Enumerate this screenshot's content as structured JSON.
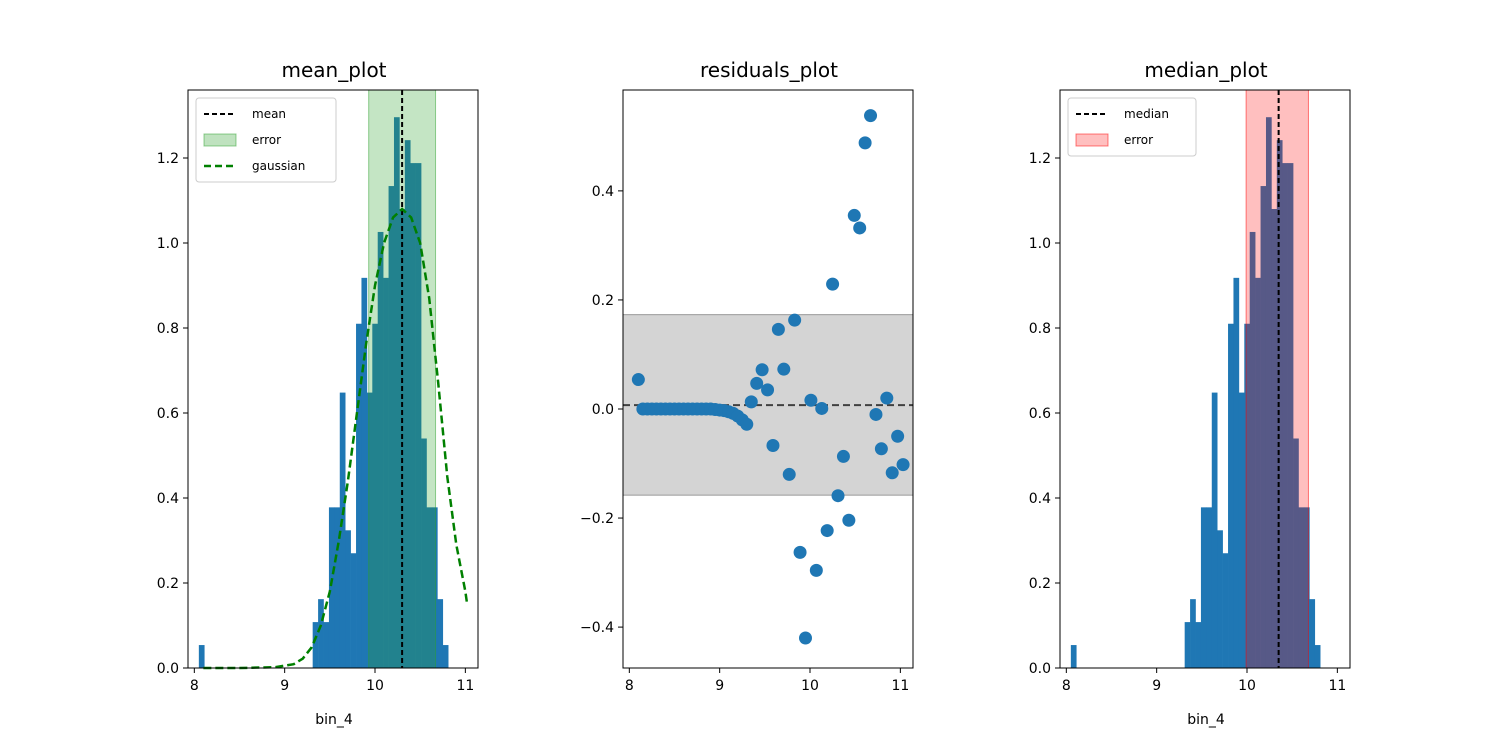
{
  "chart_data": [
    {
      "type": "bar",
      "title": "mean_plot",
      "xlabel": "bin_4",
      "ylabel": "",
      "xlim": [
        7.93,
        11.14
      ],
      "ylim": [
        0,
        1.36
      ],
      "xticks": [
        8,
        9,
        10,
        11
      ],
      "yticks": [
        0.0,
        0.2,
        0.4,
        0.6,
        0.8,
        1.0,
        1.2
      ],
      "xtick_labels": [
        "8",
        "9",
        "10",
        "11"
      ],
      "ytick_labels": [
        "0.0",
        "0.2",
        "0.4",
        "0.6",
        "0.8",
        "1.0",
        "1.2"
      ],
      "grid": false,
      "legend_position": "top-left",
      "bar_color": "#1f77b4",
      "histogram": {
        "bin_edges": [
          8.05,
          8.11,
          8.17,
          8.23,
          8.29,
          8.35,
          8.41,
          8.47,
          8.53,
          8.59,
          8.65,
          8.71,
          8.77,
          8.83,
          8.89,
          8.95,
          9.01,
          9.07,
          9.13,
          9.19,
          9.25,
          9.31,
          9.37,
          9.43,
          9.49,
          9.55,
          9.61,
          9.67,
          9.73,
          9.79,
          9.85,
          9.91,
          9.97,
          10.03,
          10.09,
          10.15,
          10.21,
          10.27,
          10.33,
          10.39,
          10.45,
          10.51,
          10.57,
          10.63,
          10.69,
          10.75,
          10.81,
          10.87,
          10.93,
          10.99,
          11.05
        ],
        "values": [
          0.054,
          0,
          0,
          0,
          0,
          0,
          0,
          0,
          0,
          0,
          0,
          0,
          0,
          0,
          0,
          0,
          0,
          0,
          0,
          0,
          0,
          0.108,
          0.162,
          0.108,
          0.378,
          0.378,
          0.648,
          0.324,
          0.27,
          0.81,
          0.918,
          0.648,
          0.81,
          1.026,
          0.918,
          1.134,
          1.296,
          1.08,
          1.242,
          1.188,
          1.188,
          0.54,
          0.378,
          0.378,
          0.162,
          0.054,
          0,
          0,
          0,
          0
        ]
      },
      "mean": 10.3,
      "error_band": [
        9.93,
        10.67
      ],
      "gaussian": {
        "x": [
          8.1,
          8.5,
          8.9,
          9.1,
          9.2,
          9.3,
          9.4,
          9.5,
          9.6,
          9.7,
          9.8,
          9.9,
          10.0,
          10.1,
          10.2,
          10.3,
          10.4,
          10.5,
          10.6,
          10.7,
          10.8,
          10.9,
          11.0,
          11.02
        ],
        "y": [
          0.0,
          0.0,
          0.002,
          0.009,
          0.022,
          0.049,
          0.1,
          0.18,
          0.3,
          0.44,
          0.6,
          0.76,
          0.9,
          1.0,
          1.06,
          1.08,
          1.06,
          1.0,
          0.87,
          0.67,
          0.45,
          0.29,
          0.18,
          0.15
        ]
      },
      "legend": [
        {
          "label": "mean",
          "type": "dashed-line",
          "color": "#000000"
        },
        {
          "label": "error",
          "type": "patch",
          "color": "#2ca02c"
        },
        {
          "label": "gaussian",
          "type": "dashed-line",
          "color": "#008000"
        }
      ]
    },
    {
      "type": "scatter",
      "title": "residuals_plot",
      "xlabel": "",
      "ylabel": "",
      "xlim": [
        7.93,
        11.14
      ],
      "ylim": [
        -0.475,
        0.585
      ],
      "xticks": [
        8,
        9,
        10,
        11
      ],
      "yticks": [
        -0.4,
        -0.2,
        0.0,
        0.2,
        0.4
      ],
      "xtick_labels": [
        "8",
        "9",
        "10",
        "11"
      ],
      "ytick_labels": [
        "−0.4",
        "−0.2",
        "0.0",
        "0.2",
        "0.4"
      ],
      "grid": false,
      "point_color": "#1f77b4",
      "reference_line": 0.007,
      "band": [
        -0.158,
        0.173
      ],
      "x": [
        8.1,
        8.15,
        8.2,
        8.25,
        8.3,
        8.35,
        8.4,
        8.45,
        8.5,
        8.55,
        8.6,
        8.65,
        8.7,
        8.75,
        8.8,
        8.85,
        8.9,
        8.95,
        9.0,
        9.05,
        9.1,
        9.15,
        9.2,
        9.25,
        9.3,
        9.35,
        9.41,
        9.47,
        9.53,
        9.59,
        9.65,
        9.71,
        9.77,
        9.83,
        9.89,
        9.95,
        10.01,
        10.07,
        10.13,
        10.19,
        10.25,
        10.31,
        10.37,
        10.43,
        10.49,
        10.55,
        10.61,
        10.67,
        10.73,
        10.79,
        10.85,
        10.91,
        10.97,
        11.03
      ],
      "y": [
        0.054,
        0.0,
        0.0,
        0.0,
        0.0,
        0.0,
        0.0,
        0.0,
        0.0,
        0.0,
        0.0,
        0.0,
        0.0,
        0.0,
        0.0,
        0.0,
        0.0,
        -0.001,
        -0.002,
        -0.003,
        -0.005,
        -0.008,
        -0.013,
        -0.02,
        -0.028,
        0.013,
        0.047,
        0.072,
        0.035,
        -0.067,
        0.146,
        0.073,
        -0.12,
        0.163,
        -0.263,
        -0.42,
        0.016,
        -0.296,
        0.001,
        -0.223,
        0.229,
        -0.159,
        -0.087,
        -0.204,
        0.355,
        0.332,
        0.488,
        0.538,
        -0.01,
        -0.073,
        0.02,
        -0.117,
        -0.05,
        -0.102
      ]
    },
    {
      "type": "bar",
      "title": "median_plot",
      "xlabel": "bin_4",
      "ylabel": "",
      "xlim": [
        7.93,
        11.14
      ],
      "ylim": [
        0,
        1.36
      ],
      "xticks": [
        8,
        9,
        10,
        11
      ],
      "yticks": [
        0.0,
        0.2,
        0.4,
        0.6,
        0.8,
        1.0,
        1.2
      ],
      "xtick_labels": [
        "8",
        "9",
        "10",
        "11"
      ],
      "ytick_labels": [
        "0.0",
        "0.2",
        "0.4",
        "0.6",
        "0.8",
        "1.0",
        "1.2"
      ],
      "grid": false,
      "legend_position": "top-left",
      "bar_color": "#1f77b4",
      "median": 10.35,
      "error_band": [
        9.99,
        10.68
      ],
      "legend": [
        {
          "label": "median",
          "type": "dashed-line",
          "color": "#000000"
        },
        {
          "label": "error",
          "type": "patch",
          "color": "#ff0000"
        }
      ]
    }
  ]
}
